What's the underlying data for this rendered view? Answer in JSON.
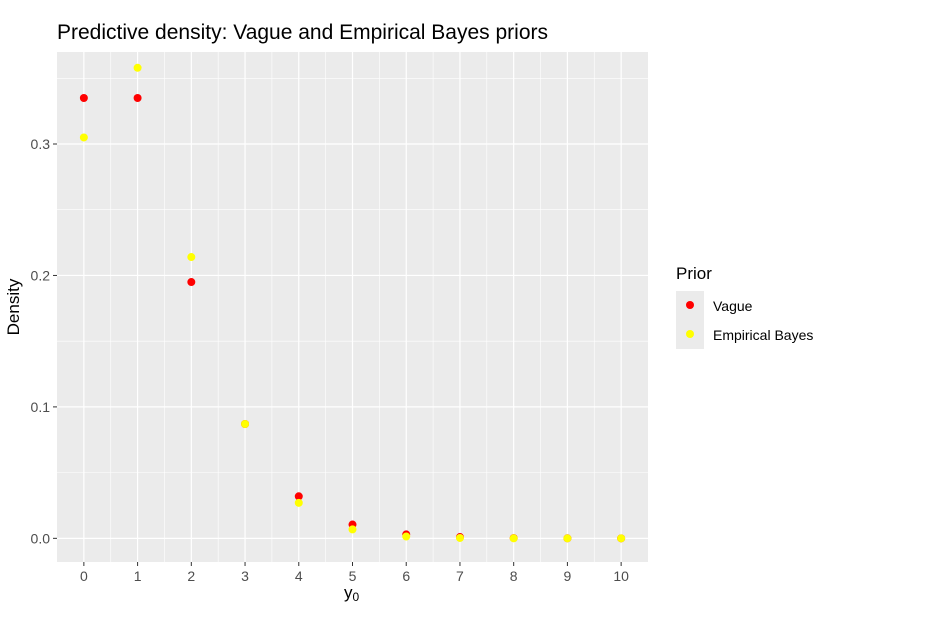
{
  "chart_data": {
    "type": "scatter",
    "title": "Predictive density: Vague and Empirical Bayes priors",
    "xlabel": "y",
    "xlabel_subscript": "0",
    "ylabel": "Density",
    "x": [
      0,
      1,
      2,
      3,
      4,
      5,
      6,
      7,
      8,
      9,
      10
    ],
    "x_ticks": [
      "0",
      "1",
      "2",
      "3",
      "4",
      "5",
      "6",
      "7",
      "8",
      "9",
      "10"
    ],
    "y_ticks": [
      "0.0",
      "0.1",
      "0.2",
      "0.3"
    ],
    "y_tick_values": [
      0.0,
      0.1,
      0.2,
      0.3
    ],
    "xlim": [
      -0.5,
      10.5
    ],
    "ylim": [
      -0.018,
      0.37
    ],
    "grid": true,
    "legend": {
      "title": "Prior",
      "position": "right"
    },
    "series": [
      {
        "name": "Vague",
        "color": "#ff0000",
        "values": [
          0.335,
          0.335,
          0.195,
          0.087,
          0.032,
          0.0105,
          0.003,
          0.001,
          0.0002,
          4e-05,
          1e-05
        ]
      },
      {
        "name": "Empirical Bayes",
        "color": "#ffff00",
        "values": [
          0.305,
          0.358,
          0.214,
          0.087,
          0.027,
          0.0068,
          0.0014,
          0.0003,
          5e-05,
          1e-05,
          2e-06
        ]
      }
    ]
  }
}
